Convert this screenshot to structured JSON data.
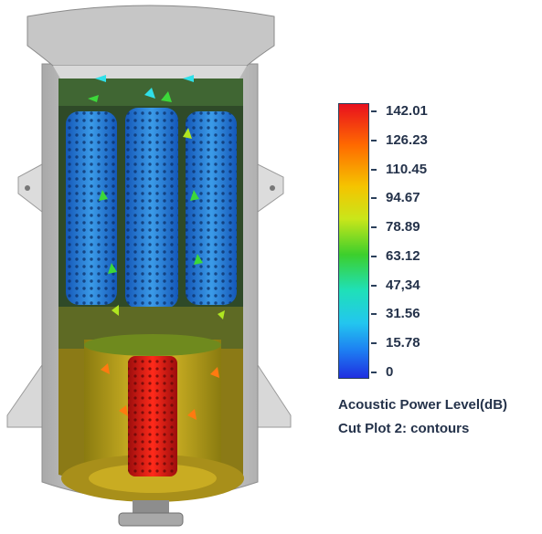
{
  "legend": {
    "title": "Acoustic Power Level(dB)",
    "subtitle": "Cut Plot 2: contours",
    "ticks": [
      "142.01",
      "126.23",
      "110.45",
      "94.67",
      "78.89",
      "63.12",
      "47,34",
      "31.56",
      "15.78",
      "0"
    ],
    "colors": [
      "#e8101e",
      "#ff6a00",
      "#f5c400",
      "#c9e61a",
      "#3ccf2c",
      "#1fe0b8",
      "#23c6ef",
      "#1d7ef2",
      "#1f2fe0"
    ]
  },
  "model": {
    "description_colors": {
      "housing": "#c9c9c9",
      "upper_chamber": "#2f8fe0",
      "lower_chamber": "#d8b21e",
      "core": "#e81818"
    }
  }
}
